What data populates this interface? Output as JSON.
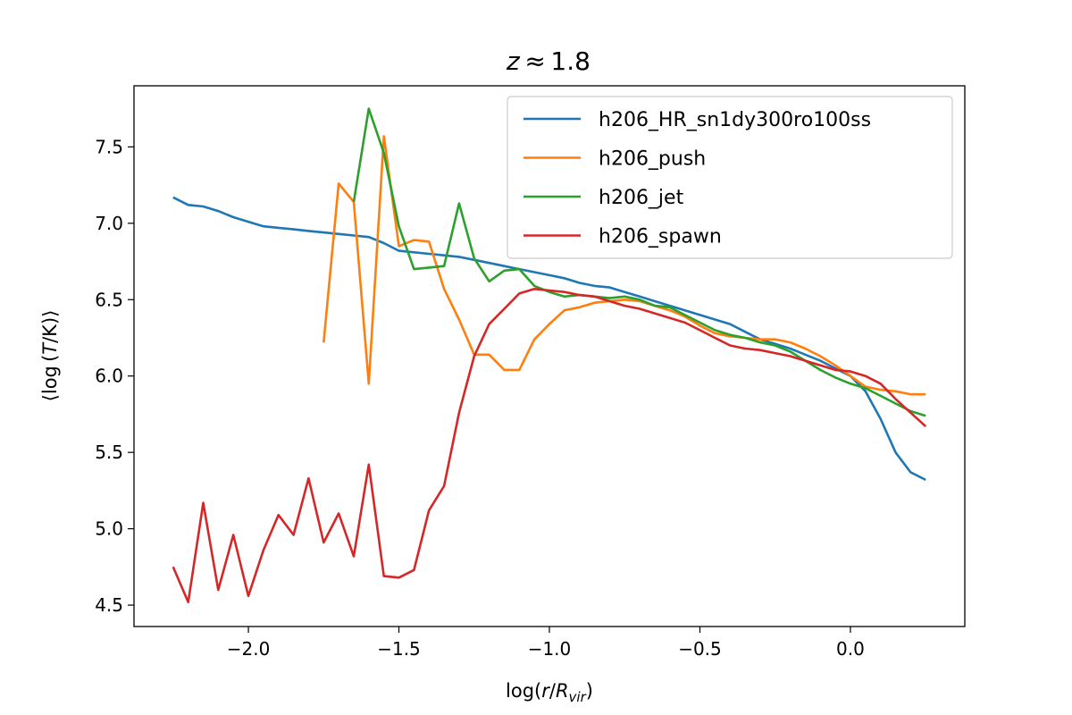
{
  "chart_data": {
    "type": "line",
    "title": {
      "var": "z",
      "rest": " ≈ 1.8"
    },
    "xlabel": {
      "pre": "log(",
      "var": "r",
      "mid": "/",
      "var2": "R",
      "sub": "vir",
      "post": ")"
    },
    "ylabel": {
      "pre": "⟨log (",
      "var": "T",
      "post": "/K)⟩"
    },
    "xlim": [
      -2.38,
      0.38
    ],
    "ylim": [
      4.36,
      7.9
    ],
    "xticks": [
      -2.0,
      -1.5,
      -1.0,
      -0.5,
      0.0
    ],
    "xtick_labels": [
      "−2.0",
      "−1.5",
      "−1.0",
      "−0.5",
      "0.0"
    ],
    "yticks": [
      4.5,
      5.0,
      5.5,
      6.0,
      6.5,
      7.0,
      7.5
    ],
    "ytick_labels": [
      "4.5",
      "5.0",
      "5.5",
      "6.0",
      "6.5",
      "7.0",
      "7.5"
    ],
    "grid": false,
    "legend_position": "top-right",
    "series": [
      {
        "name": "h206_HR_sn1dy300ro100ss",
        "color": "#1f77b4",
        "x": [
          -2.25,
          -2.2,
          -2.15,
          -2.1,
          -2.05,
          -2.0,
          -1.95,
          -1.9,
          -1.85,
          -1.8,
          -1.75,
          -1.7,
          -1.65,
          -1.6,
          -1.55,
          -1.5,
          -1.45,
          -1.4,
          -1.35,
          -1.3,
          -1.25,
          -1.2,
          -1.15,
          -1.1,
          -1.05,
          -1.0,
          -0.95,
          -0.9,
          -0.85,
          -0.8,
          -0.75,
          -0.7,
          -0.65,
          -0.6,
          -0.55,
          -0.5,
          -0.45,
          -0.4,
          -0.35,
          -0.3,
          -0.25,
          -0.2,
          -0.15,
          -0.1,
          -0.05,
          0.0,
          0.05,
          0.1,
          0.15,
          0.2,
          0.25
        ],
        "y": [
          7.17,
          7.12,
          7.11,
          7.08,
          7.04,
          7.01,
          6.98,
          6.97,
          6.96,
          6.95,
          6.94,
          6.93,
          6.92,
          6.91,
          6.87,
          6.82,
          6.81,
          6.8,
          6.79,
          6.78,
          6.76,
          6.74,
          6.72,
          6.7,
          6.68,
          6.66,
          6.64,
          6.61,
          6.59,
          6.58,
          6.55,
          6.52,
          6.49,
          6.46,
          6.43,
          6.4,
          6.37,
          6.34,
          6.29,
          6.24,
          6.21,
          6.18,
          6.14,
          6.1,
          6.05,
          6.0,
          5.9,
          5.72,
          5.5,
          5.37,
          5.32
        ]
      },
      {
        "name": "h206_push",
        "color": "#ff7f0e",
        "x": [
          -1.75,
          -1.7,
          -1.65,
          -1.6,
          -1.55,
          -1.5,
          -1.45,
          -1.4,
          -1.35,
          -1.3,
          -1.25,
          -1.2,
          -1.15,
          -1.1,
          -1.05,
          -1.0,
          -0.95,
          -0.9,
          -0.85,
          -0.8,
          -0.75,
          -0.7,
          -0.65,
          -0.6,
          -0.55,
          -0.5,
          -0.45,
          -0.4,
          -0.35,
          -0.3,
          -0.25,
          -0.2,
          -0.15,
          -0.1,
          -0.05,
          0.0,
          0.05,
          0.1,
          0.15,
          0.2,
          0.25
        ],
        "y": [
          6.22,
          7.26,
          7.14,
          5.95,
          7.57,
          6.85,
          6.89,
          6.88,
          6.57,
          6.37,
          6.14,
          6.14,
          6.04,
          6.04,
          6.24,
          6.34,
          6.43,
          6.45,
          6.48,
          6.49,
          6.5,
          6.49,
          6.46,
          6.43,
          6.39,
          6.33,
          6.28,
          6.26,
          6.25,
          6.24,
          6.24,
          6.22,
          6.18,
          6.13,
          6.07,
          6.0,
          5.93,
          5.91,
          5.9,
          5.88,
          5.88
        ]
      },
      {
        "name": "h206_jet",
        "color": "#2ca02c",
        "x": [
          -1.65,
          -1.6,
          -1.55,
          -1.5,
          -1.45,
          -1.4,
          -1.35,
          -1.3,
          -1.25,
          -1.2,
          -1.15,
          -1.1,
          -1.05,
          -1.0,
          -0.95,
          -0.9,
          -0.85,
          -0.8,
          -0.75,
          -0.7,
          -0.65,
          -0.6,
          -0.55,
          -0.5,
          -0.45,
          -0.4,
          -0.35,
          -0.3,
          -0.25,
          -0.2,
          -0.15,
          -0.1,
          -0.05,
          0.0,
          0.05,
          0.1,
          0.15,
          0.2,
          0.25
        ],
        "y": [
          7.14,
          7.75,
          7.46,
          6.98,
          6.7,
          6.71,
          6.72,
          7.13,
          6.77,
          6.62,
          6.69,
          6.7,
          6.59,
          6.55,
          6.52,
          6.53,
          6.52,
          6.51,
          6.52,
          6.5,
          6.46,
          6.45,
          6.4,
          6.35,
          6.3,
          6.27,
          6.25,
          6.22,
          6.2,
          6.16,
          6.1,
          6.04,
          5.99,
          5.95,
          5.92,
          5.87,
          5.82,
          5.77,
          5.74
        ]
      },
      {
        "name": "h206_spawn",
        "color": "#d62728",
        "x": [
          -2.25,
          -2.2,
          -2.15,
          -2.1,
          -2.05,
          -2.0,
          -1.95,
          -1.9,
          -1.85,
          -1.8,
          -1.75,
          -1.7,
          -1.65,
          -1.6,
          -1.55,
          -1.5,
          -1.45,
          -1.4,
          -1.35,
          -1.3,
          -1.25,
          -1.2,
          -1.15,
          -1.1,
          -1.05,
          -1.0,
          -0.95,
          -0.9,
          -0.85,
          -0.8,
          -0.75,
          -0.7,
          -0.65,
          -0.6,
          -0.55,
          -0.5,
          -0.45,
          -0.4,
          -0.35,
          -0.3,
          -0.25,
          -0.2,
          -0.15,
          -0.1,
          -0.05,
          0.0,
          0.05,
          0.1,
          0.15,
          0.2,
          0.25
        ],
        "y": [
          4.75,
          4.52,
          5.17,
          4.6,
          4.96,
          4.56,
          4.86,
          5.09,
          4.96,
          5.33,
          4.91,
          5.1,
          4.82,
          5.42,
          4.69,
          4.68,
          4.73,
          5.12,
          5.28,
          5.76,
          6.13,
          6.34,
          6.44,
          6.54,
          6.57,
          6.56,
          6.55,
          6.53,
          6.52,
          6.49,
          6.46,
          6.44,
          6.41,
          6.38,
          6.35,
          6.3,
          6.25,
          6.2,
          6.18,
          6.17,
          6.15,
          6.13,
          6.1,
          6.07,
          6.04,
          6.03,
          6.0,
          5.95,
          5.85,
          5.76,
          5.67
        ]
      }
    ]
  }
}
